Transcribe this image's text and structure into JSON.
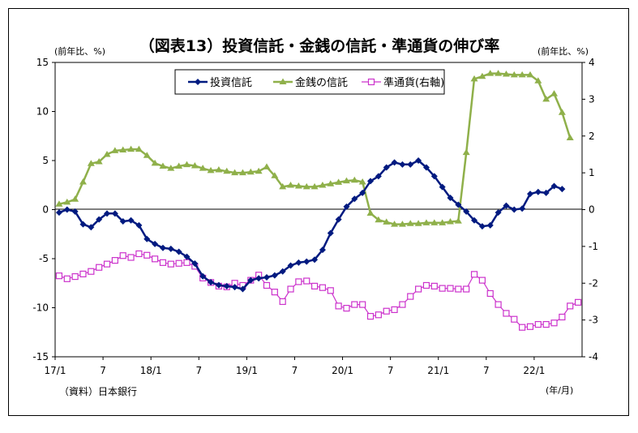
{
  "chart_data": {
    "type": "line",
    "title": "（図表13）投資信託・金銭の信託・準通貨の伸び率",
    "left_unit": "(前年比、%)",
    "right_unit": "(前年比、%)",
    "source": "（資料）日本銀行",
    "x_unit": "(年/月)",
    "x_tick_labels": [
      "17/1",
      "7",
      "18/1",
      "7",
      "19/1",
      "7",
      "20/1",
      "7",
      "21/1",
      "7",
      "22/1"
    ],
    "ylim_left": [
      -15,
      15
    ],
    "yticks_left": [
      -15,
      -10,
      -5,
      0,
      5,
      10,
      15
    ],
    "ylim_right": [
      -4,
      4
    ],
    "yticks_right": [
      -4,
      -3,
      -2,
      -1,
      0,
      1,
      2,
      3,
      4
    ],
    "legend_position": "top-center",
    "series": [
      {
        "name": "投資信託",
        "axis": "left",
        "color": "#001a80",
        "marker": "diamond",
        "values": [
          -0.3,
          0,
          -0.2,
          -1.5,
          -1.8,
          -1,
          -0.4,
          -0.4,
          -1.2,
          -1.1,
          -1.6,
          -3,
          -3.5,
          -3.9,
          -4,
          -4.3,
          -4.8,
          -5.5,
          -6.8,
          -7.4,
          -7.7,
          -7.8,
          -7.9,
          -8.1,
          -7.2,
          -7,
          -6.9,
          -6.7,
          -6.3,
          -5.7,
          -5.4,
          -5.3,
          -5.1,
          -4.1,
          -2.4,
          -1,
          0.3,
          1.1,
          1.7,
          2.9,
          3.4,
          4.3,
          4.8,
          4.6,
          4.6,
          5,
          4.3,
          3.4,
          2.3,
          1.2,
          0.5,
          -0.2,
          -1.1,
          -1.7,
          -1.6,
          -0.3,
          0.4,
          0,
          0.1,
          1.6,
          1.8,
          1.7,
          2.4,
          2.1
        ]
      },
      {
        "name": "金銭の信託",
        "axis": "right",
        "color": "#8fb04a",
        "marker": "triangle",
        "values": [
          0.15,
          0.2,
          0.28,
          0.75,
          1.25,
          1.3,
          1.5,
          1.6,
          1.62,
          1.64,
          1.64,
          1.47,
          1.26,
          1.18,
          1.12,
          1.18,
          1.22,
          1.19,
          1.12,
          1.06,
          1.08,
          1.04,
          1.0,
          1.0,
          1.02,
          1.04,
          1.16,
          0.92,
          0.62,
          0.66,
          0.64,
          0.62,
          0.62,
          0.66,
          0.7,
          0.74,
          0.78,
          0.8,
          0.75,
          -0.1,
          -0.28,
          -0.34,
          -0.4,
          -0.4,
          -0.38,
          -0.38,
          -0.36,
          -0.36,
          -0.36,
          -0.33,
          -0.31,
          1.55,
          3.55,
          3.62,
          3.7,
          3.7,
          3.68,
          3.66,
          3.66,
          3.66,
          3.5,
          3.0,
          3.15,
          2.64,
          1.95
        ]
      },
      {
        "name": "準通貨(右軸)",
        "axis": "right",
        "color": "#cc33cc",
        "marker": "square",
        "values": [
          -1.8,
          -1.88,
          -1.82,
          -1.75,
          -1.68,
          -1.57,
          -1.48,
          -1.38,
          -1.25,
          -1.3,
          -1.2,
          -1.24,
          -1.34,
          -1.44,
          -1.48,
          -1.46,
          -1.44,
          -1.54,
          -1.86,
          -1.98,
          -2.08,
          -2.1,
          -2.0,
          -2.06,
          -1.92,
          -1.78,
          -2.06,
          -2.24,
          -2.5,
          -2.16,
          -1.96,
          -1.94,
          -2.08,
          -2.12,
          -2.2,
          -2.62,
          -2.68,
          -2.58,
          -2.58,
          -2.9,
          -2.86,
          -2.76,
          -2.72,
          -2.58,
          -2.36,
          -2.16,
          -2.06,
          -2.08,
          -2.14,
          -2.14,
          -2.16,
          -2.16,
          -1.76,
          -1.92,
          -2.28,
          -2.58,
          -2.82,
          -2.98,
          -3.2,
          -3.18,
          -3.12,
          -3.12,
          -3.08,
          -2.92,
          -2.62,
          -2.52
        ]
      }
    ]
  }
}
